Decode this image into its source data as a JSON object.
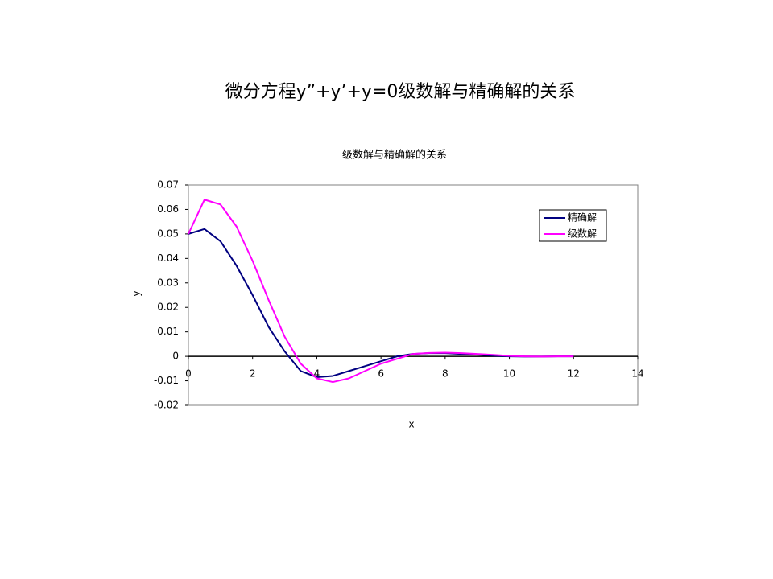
{
  "slide_title": "微分方程y”+y’+y=0级数解与精确解的关系",
  "chart_data": {
    "type": "line",
    "title": "级数解与精确解的关系",
    "x_label": "x",
    "y_label": "y",
    "x": [
      0,
      0.5,
      1,
      1.5,
      2,
      2.5,
      3,
      3.5,
      4,
      4.5,
      5,
      5.5,
      6,
      6.5,
      7,
      7.5,
      8,
      8.5,
      9,
      9.5,
      10,
      10.5,
      11,
      11.5,
      12
    ],
    "series": [
      {
        "name": "精确解",
        "color": "#000080",
        "values": [
          0.05,
          0.052,
          0.047,
          0.037,
          0.025,
          0.012,
          0.002,
          -0.006,
          -0.0085,
          -0.008,
          -0.006,
          -0.004,
          -0.002,
          0,
          0.001,
          0.0013,
          0.0013,
          0.001,
          0.0007,
          0.0003,
          0,
          -0.0001,
          -0.0001,
          0,
          0
        ]
      },
      {
        "name": "级数解",
        "color": "#ff00ff",
        "values": [
          0.05,
          0.064,
          0.062,
          0.053,
          0.039,
          0.023,
          0.008,
          -0.003,
          -0.009,
          -0.0105,
          -0.009,
          -0.006,
          -0.003,
          -0.001,
          0.001,
          0.0014,
          0.0015,
          0.0013,
          0.001,
          0.0006,
          0.0002,
          0,
          -0.0001,
          0,
          0
        ]
      }
    ],
    "xlim": [
      0,
      14
    ],
    "xticks": [
      0,
      2,
      4,
      6,
      8,
      10,
      12,
      14
    ],
    "ylim": [
      -0.02,
      0.07
    ],
    "yticks": [
      -0.02,
      -0.01,
      0,
      0.01,
      0.02,
      0.03,
      0.04,
      0.05,
      0.06,
      0.07
    ],
    "legend": "upper right"
  }
}
